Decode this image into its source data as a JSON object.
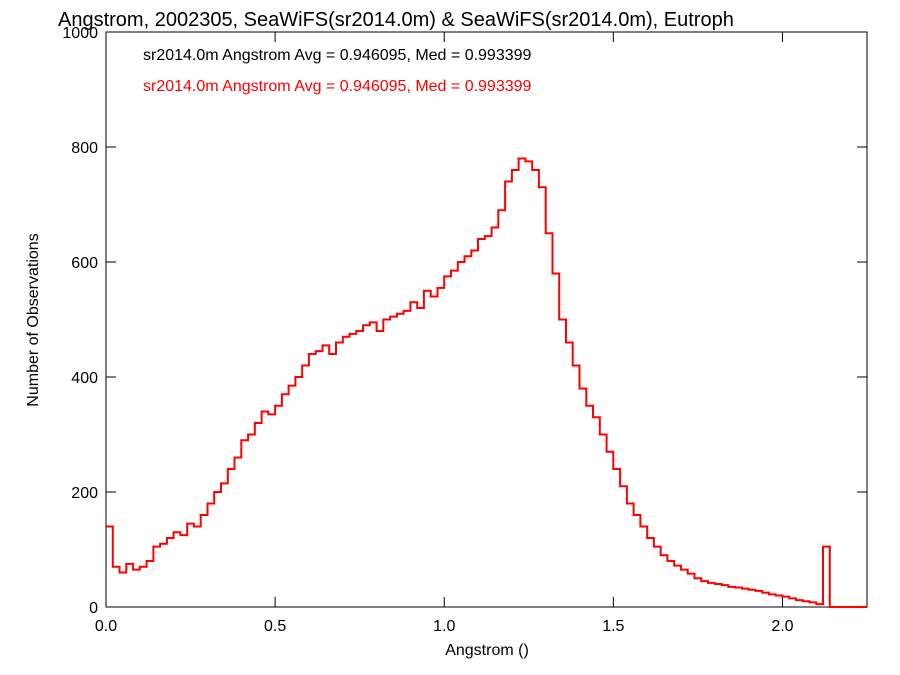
{
  "chart_data": {
    "type": "line",
    "title": "Angstrom, 2002305, SeaWiFS(sr2014.0m) & SeaWiFS(sr2014.0m), Eutroph",
    "xlabel": "Angstrom ()",
    "ylabel": "Number of Observations",
    "xlim": [
      0.0,
      2.25
    ],
    "ylim": [
      0,
      1000
    ],
    "xticks": [
      0.0,
      0.5,
      1.0,
      1.5,
      2.0
    ],
    "xtick_labels": [
      "0.0",
      "0.5",
      "1.0",
      "1.5",
      "2.0"
    ],
    "yticks": [
      0,
      200,
      400,
      600,
      800,
      1000
    ],
    "ytick_labels": [
      "0",
      "200",
      "400",
      "600",
      "800",
      "1000"
    ],
    "grid": false,
    "annotations": [
      {
        "text": "sr2014.0m Angstrom Avg = 0.946095, Med = 0.993399",
        "color": "#000000"
      },
      {
        "text": "sr2014.0m Angstrom Avg = 0.946095, Med = 0.993399",
        "color": "#ff0000"
      }
    ],
    "series": [
      {
        "color": "#ff0000",
        "step": true,
        "x": [
          0.0,
          0.02,
          0.04,
          0.06,
          0.08,
          0.1,
          0.12,
          0.14,
          0.16,
          0.18,
          0.2,
          0.22,
          0.24,
          0.26,
          0.28,
          0.3,
          0.32,
          0.34,
          0.36,
          0.38,
          0.4,
          0.42,
          0.44,
          0.46,
          0.48,
          0.5,
          0.52,
          0.54,
          0.56,
          0.58,
          0.6,
          0.62,
          0.64,
          0.66,
          0.68,
          0.7,
          0.72,
          0.74,
          0.76,
          0.78,
          0.8,
          0.82,
          0.84,
          0.86,
          0.88,
          0.9,
          0.92,
          0.94,
          0.96,
          0.98,
          1.0,
          1.02,
          1.04,
          1.06,
          1.08,
          1.1,
          1.12,
          1.14,
          1.16,
          1.18,
          1.2,
          1.22,
          1.24,
          1.26,
          1.28,
          1.3,
          1.32,
          1.34,
          1.36,
          1.38,
          1.4,
          1.42,
          1.44,
          1.46,
          1.48,
          1.5,
          1.52,
          1.54,
          1.56,
          1.58,
          1.6,
          1.62,
          1.64,
          1.66,
          1.68,
          1.7,
          1.72,
          1.74,
          1.76,
          1.78,
          1.8,
          1.82,
          1.84,
          1.86,
          1.88,
          1.9,
          1.92,
          1.94,
          1.96,
          1.98,
          2.0,
          2.02,
          2.04,
          2.06,
          2.08,
          2.1,
          2.12,
          2.14,
          2.16,
          2.18,
          2.2,
          2.22,
          2.25
        ],
        "y": [
          140,
          70,
          60,
          75,
          65,
          70,
          80,
          105,
          110,
          120,
          130,
          125,
          145,
          140,
          160,
          180,
          200,
          215,
          240,
          260,
          290,
          300,
          320,
          340,
          335,
          350,
          370,
          385,
          400,
          420,
          440,
          445,
          455,
          440,
          460,
          470,
          475,
          480,
          490,
          495,
          480,
          500,
          505,
          510,
          515,
          530,
          520,
          550,
          540,
          555,
          575,
          585,
          600,
          610,
          620,
          640,
          645,
          660,
          690,
          740,
          760,
          780,
          775,
          760,
          730,
          650,
          580,
          500,
          460,
          420,
          380,
          350,
          330,
          300,
          270,
          240,
          210,
          180,
          160,
          140,
          120,
          105,
          90,
          80,
          72,
          65,
          58,
          50,
          45,
          42,
          40,
          38,
          35,
          34,
          32,
          30,
          28,
          25,
          22,
          20,
          18,
          15,
          12,
          10,
          8,
          5,
          105,
          0,
          0,
          0,
          0,
          0,
          0
        ]
      }
    ]
  }
}
